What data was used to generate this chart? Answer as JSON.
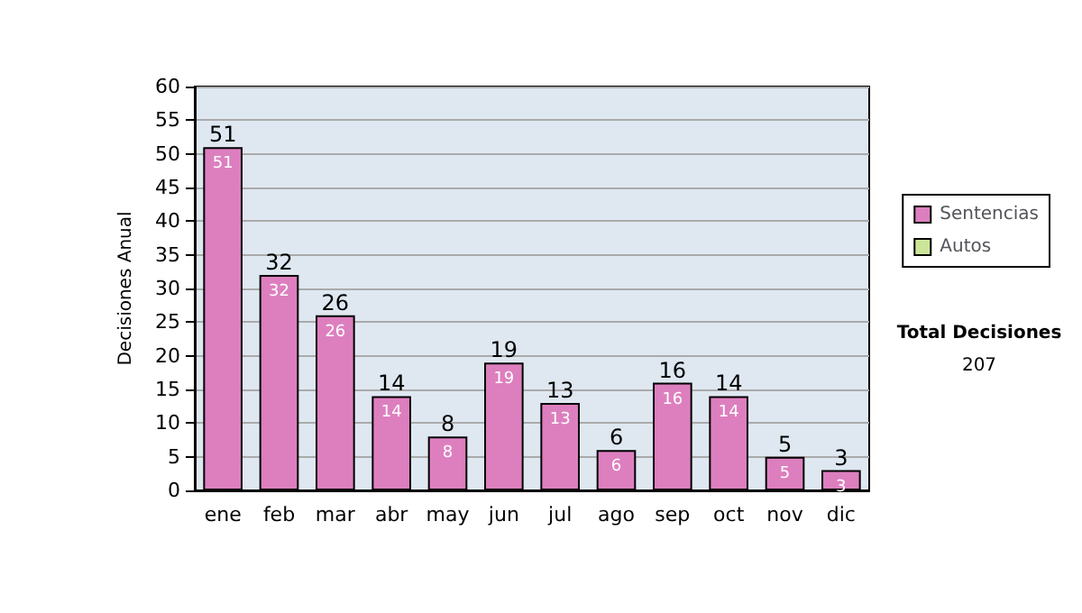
{
  "chart_data": {
    "type": "bar",
    "ylabel": "Decisiones Anual",
    "categories": [
      "ene",
      "feb",
      "mar",
      "abr",
      "may",
      "jun",
      "jul",
      "ago",
      "sep",
      "oct",
      "nov",
      "dic"
    ],
    "series": [
      {
        "name": "Sentencias",
        "color": "#dd7fbf",
        "values": [
          51,
          32,
          26,
          14,
          8,
          19,
          13,
          6,
          16,
          14,
          5,
          3
        ],
        "value_labels": [
          "51",
          "32",
          "26",
          "14",
          "8",
          "19",
          "13",
          "6",
          "16",
          "14",
          "5",
          "3"
        ]
      },
      {
        "name": "Autos",
        "color": "#cce699",
        "values": [
          0,
          0,
          0,
          0,
          0,
          0,
          0,
          0,
          0,
          0,
          0,
          0
        ]
      }
    ],
    "stacked": true,
    "totals": [
      "51",
      "32",
      "26",
      "14",
      "8",
      "19",
      "13",
      "6",
      "16",
      "14",
      "5",
      "3"
    ],
    "ylim": [
      0,
      60
    ],
    "yticks": [
      0,
      5,
      10,
      15,
      20,
      25,
      30,
      35,
      40,
      45,
      50,
      55,
      60
    ],
    "grid": "y",
    "legend": "right",
    "annotations": [
      "Total Decisiones",
      "207"
    ]
  }
}
